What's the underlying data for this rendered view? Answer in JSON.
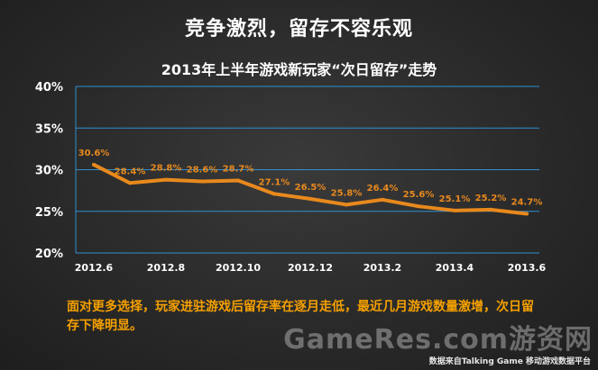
{
  "headline": "竞争激烈，留存不容乐观",
  "note": "面对更多选择，玩家进驻游戏后留存率在逐月走低，最近几月游戏数量激增，次日留存下降明显。",
  "watermark": "GameRes.com游资网",
  "source": "数据来自Talking Game 移动游戏数据平台",
  "colors": {
    "line": "#e8891d",
    "label": "#e8891d",
    "grid": "#2f8fd0",
    "axis_text": "#ffffff"
  },
  "chart_data": {
    "type": "line",
    "title": "2013年上半年游戏新玩家“次日留存”走势",
    "xlabel": "",
    "ylabel": "",
    "x": [
      "2012.6",
      "2012.7",
      "2012.8",
      "2012.9",
      "2012.10",
      "2012.11",
      "2012.12",
      "2013.1",
      "2013.2",
      "2013.3",
      "2013.4",
      "2013.5",
      "2013.6"
    ],
    "x_tick_labels": [
      "2012.6",
      "2012.8",
      "2012.10",
      "2012.12",
      "2013.2",
      "2013.4",
      "2013.6"
    ],
    "values": [
      30.6,
      28.4,
      28.8,
      28.6,
      28.7,
      27.1,
      26.5,
      25.8,
      26.4,
      25.6,
      25.1,
      25.2,
      24.7
    ],
    "data_labels": [
      "30.6%",
      "28.4%",
      "28.8%",
      "28.6%",
      "28.7%",
      "27.1%",
      "26.5%",
      "25.8%",
      "26.4%",
      "25.6%",
      "25.1%",
      "25.2%",
      "24.7%"
    ],
    "y_ticks": [
      20,
      25,
      30,
      35,
      40
    ],
    "y_tick_labels": [
      "20%",
      "25%",
      "30%",
      "35%",
      "40%"
    ],
    "ylim": [
      20,
      40
    ],
    "grid": true,
    "legend": "none"
  }
}
